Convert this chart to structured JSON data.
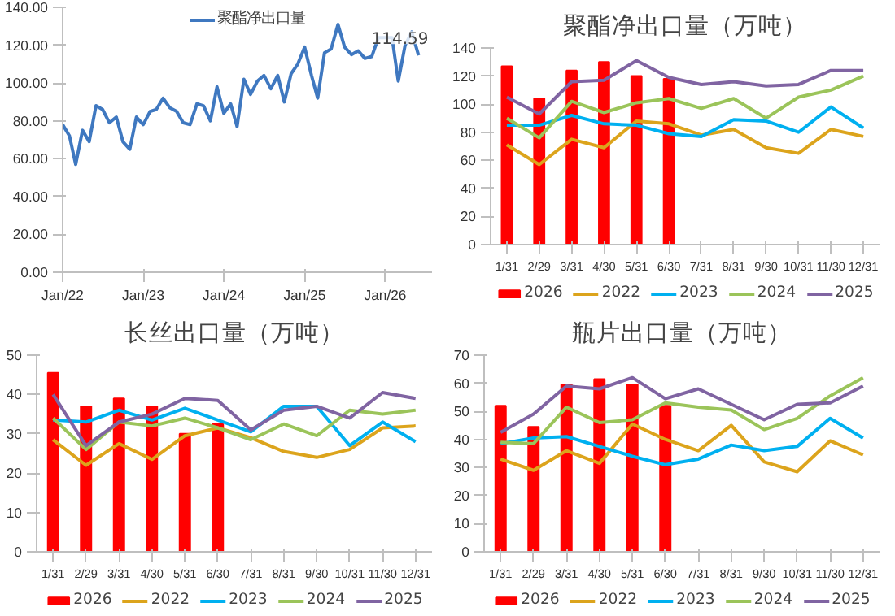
{
  "chart_data": [
    {
      "type": "line",
      "legend": "top",
      "grid": false,
      "x": [
        "2022-01",
        "2022-02",
        "2022-03",
        "2022-04",
        "2022-05",
        "2022-06",
        "2022-07",
        "2022-08",
        "2022-09",
        "2022-10",
        "2022-11",
        "2022-12",
        "2023-01",
        "2023-02",
        "2023-03",
        "2023-04",
        "2023-05",
        "2023-06",
        "2023-07",
        "2023-08",
        "2023-09",
        "2023-10",
        "2023-11",
        "2023-12",
        "2024-01",
        "2024-02",
        "2024-03",
        "2024-04",
        "2024-05",
        "2024-06",
        "2024-07",
        "2024-08",
        "2024-09",
        "2024-10",
        "2024-11",
        "2024-12",
        "2025-01",
        "2025-02",
        "2025-03",
        "2025-04",
        "2025-05",
        "2025-06",
        "2025-07",
        "2025-08",
        "2025-09",
        "2025-10",
        "2025-11",
        "2025-12",
        "2026-01",
        "2026-02",
        "2026-03",
        "2026-04",
        "2026-05",
        "2026-06"
      ],
      "xlim": [
        "2022-01",
        "2026-08"
      ],
      "xticks": [
        {
          "value": "2022-01",
          "label": "Jan/22"
        },
        {
          "value": "2023-01",
          "label": "Jan/23"
        },
        {
          "value": "2024-01",
          "label": "Jan/24"
        },
        {
          "value": "2025-01",
          "label": "Jan/25"
        },
        {
          "value": "2026-01",
          "label": "Jan/26"
        }
      ],
      "ylim": [
        0,
        140
      ],
      "yticks": [
        {
          "value": 0,
          "label": "0.00"
        },
        {
          "value": 20,
          "label": "20.00"
        },
        {
          "value": 40,
          "label": "40.00"
        },
        {
          "value": 60,
          "label": "60.00"
        },
        {
          "value": 80,
          "label": "80.00"
        },
        {
          "value": 100,
          "label": "100.00"
        },
        {
          "value": 120,
          "label": "120.00"
        },
        {
          "value": 140,
          "label": "140.00"
        }
      ],
      "series": [
        {
          "name": "聚酯净出口量",
          "color": "#3f78c0",
          "values": [
            78,
            72,
            57,
            75,
            69,
            88,
            86,
            79,
            82,
            69,
            65,
            82,
            78,
            85,
            86,
            92,
            87,
            85,
            79,
            78,
            89,
            88,
            80,
            98,
            84,
            89,
            77,
            102,
            94,
            101,
            104,
            97,
            104,
            90,
            105,
            110,
            119,
            104,
            92,
            116,
            118,
            131,
            119,
            115,
            117,
            113,
            114,
            124,
            124,
            124,
            101,
            120,
            127,
            114.59
          ],
          "value_labels": [
            null,
            null,
            null,
            null,
            null,
            null,
            null,
            null,
            null,
            null,
            null,
            null,
            null,
            null,
            null,
            null,
            null,
            null,
            null,
            null,
            null,
            null,
            null,
            null,
            null,
            null,
            null,
            null,
            null,
            null,
            null,
            null,
            null,
            null,
            null,
            null,
            null,
            null,
            null,
            null,
            null,
            null,
            null,
            null,
            null,
            null,
            null,
            null,
            null,
            null,
            null,
            null,
            null,
            "114.59"
          ]
        }
      ]
    },
    {
      "type": "bar",
      "title": "聚酯净出口量（万吨）",
      "legend": "bottom",
      "grid": false,
      "categories": [
        "1/31",
        "2/29",
        "3/31",
        "4/30",
        "5/31",
        "6/30",
        "7/31",
        "8/31",
        "9/30",
        "10/31",
        "11/30",
        "12/31"
      ],
      "ylim": [
        0,
        140
      ],
      "yticks": [
        0,
        20,
        40,
        60,
        80,
        100,
        120,
        140
      ],
      "series": [
        {
          "name": "2026",
          "type": "bar",
          "color": "#ff0000",
          "values": [
            127,
            104,
            124,
            130,
            120,
            118,
            null,
            null,
            null,
            null,
            null,
            null
          ]
        },
        {
          "name": "2022",
          "type": "line",
          "color": "#dca41c",
          "values": [
            71,
            57,
            75,
            69,
            88,
            86,
            78,
            82,
            69,
            65,
            82,
            77
          ]
        },
        {
          "name": "2023",
          "type": "line",
          "color": "#00b0f0",
          "values": [
            85,
            85,
            92,
            86,
            85,
            79,
            77,
            89,
            88,
            80,
            98,
            83
          ]
        },
        {
          "name": "2024",
          "type": "line",
          "color": "#9bc45a",
          "values": [
            90,
            76,
            102,
            94,
            101,
            104,
            97,
            104,
            90,
            105,
            110,
            120
          ]
        },
        {
          "name": "2025",
          "type": "line",
          "color": "#8064a2",
          "values": [
            105,
            93,
            116,
            117,
            131,
            119,
            114,
            116,
            113,
            114,
            124,
            124
          ]
        }
      ]
    },
    {
      "type": "bar",
      "title": "长丝出口量（万吨）",
      "legend": "bottom",
      "grid": false,
      "categories": [
        "1/31",
        "2/29",
        "3/31",
        "4/30",
        "5/31",
        "6/30",
        "7/31",
        "8/31",
        "9/30",
        "10/31",
        "11/30",
        "12/31"
      ],
      "ylim": [
        0,
        50
      ],
      "yticks": [
        0,
        10,
        20,
        30,
        40,
        50
      ],
      "series": [
        {
          "name": "2026",
          "type": "bar",
          "color": "#ff0000",
          "values": [
            45.5,
            37,
            39,
            37,
            30,
            32.5,
            null,
            null,
            null,
            null,
            null,
            null
          ]
        },
        {
          "name": "2022",
          "type": "line",
          "color": "#dca41c",
          "values": [
            28.5,
            22,
            27.5,
            23.5,
            29.5,
            31.5,
            29,
            25.5,
            24,
            26,
            31.5,
            32
          ]
        },
        {
          "name": "2023",
          "type": "line",
          "color": "#00b0f0",
          "values": [
            33.5,
            33,
            36,
            33.5,
            36.5,
            33.5,
            30.5,
            37,
            37,
            27,
            33,
            28
          ]
        },
        {
          "name": "2024",
          "type": "line",
          "color": "#9bc45a",
          "values": [
            34,
            26,
            33,
            32,
            34,
            31.5,
            28.5,
            32.5,
            29.5,
            36,
            35,
            36
          ]
        },
        {
          "name": "2025",
          "type": "line",
          "color": "#8064a2",
          "values": [
            40,
            27,
            33,
            35,
            39,
            38.5,
            31,
            36,
            37,
            34,
            40.5,
            39
          ]
        }
      ]
    },
    {
      "type": "bar",
      "title": "瓶片出口量（万吨）",
      "legend": "bottom",
      "grid": false,
      "categories": [
        "1/31",
        "2/29",
        "3/31",
        "4/30",
        "5/31",
        "6/30",
        "7/31",
        "8/31",
        "9/30",
        "10/31",
        "11/30",
        "12/31"
      ],
      "ylim": [
        0,
        70
      ],
      "yticks": [
        0,
        10,
        20,
        30,
        40,
        50,
        60,
        70
      ],
      "series": [
        {
          "name": "2026",
          "type": "bar",
          "color": "#ff0000",
          "values": [
            52,
            44.5,
            59.5,
            61.5,
            59.5,
            52,
            null,
            null,
            null,
            null,
            null,
            null
          ]
        },
        {
          "name": "2022",
          "type": "line",
          "color": "#dca41c",
          "values": [
            33,
            29,
            36,
            31.5,
            45.5,
            40,
            36,
            45,
            32,
            28.5,
            39.5,
            34.5
          ]
        },
        {
          "name": "2023",
          "type": "line",
          "color": "#00b0f0",
          "values": [
            38.5,
            40.5,
            41,
            37.5,
            34,
            31,
            33,
            38,
            36,
            37.5,
            47.5,
            40.5
          ]
        },
        {
          "name": "2024",
          "type": "line",
          "color": "#9bc45a",
          "values": [
            39,
            38.5,
            51.5,
            46,
            47,
            53,
            51.5,
            50.5,
            43.5,
            47.5,
            55.5,
            62
          ]
        },
        {
          "name": "2025",
          "type": "line",
          "color": "#8064a2",
          "values": [
            42.5,
            49,
            59,
            58,
            62,
            54.5,
            58,
            52.5,
            47,
            52.5,
            53,
            59
          ]
        }
      ]
    }
  ]
}
